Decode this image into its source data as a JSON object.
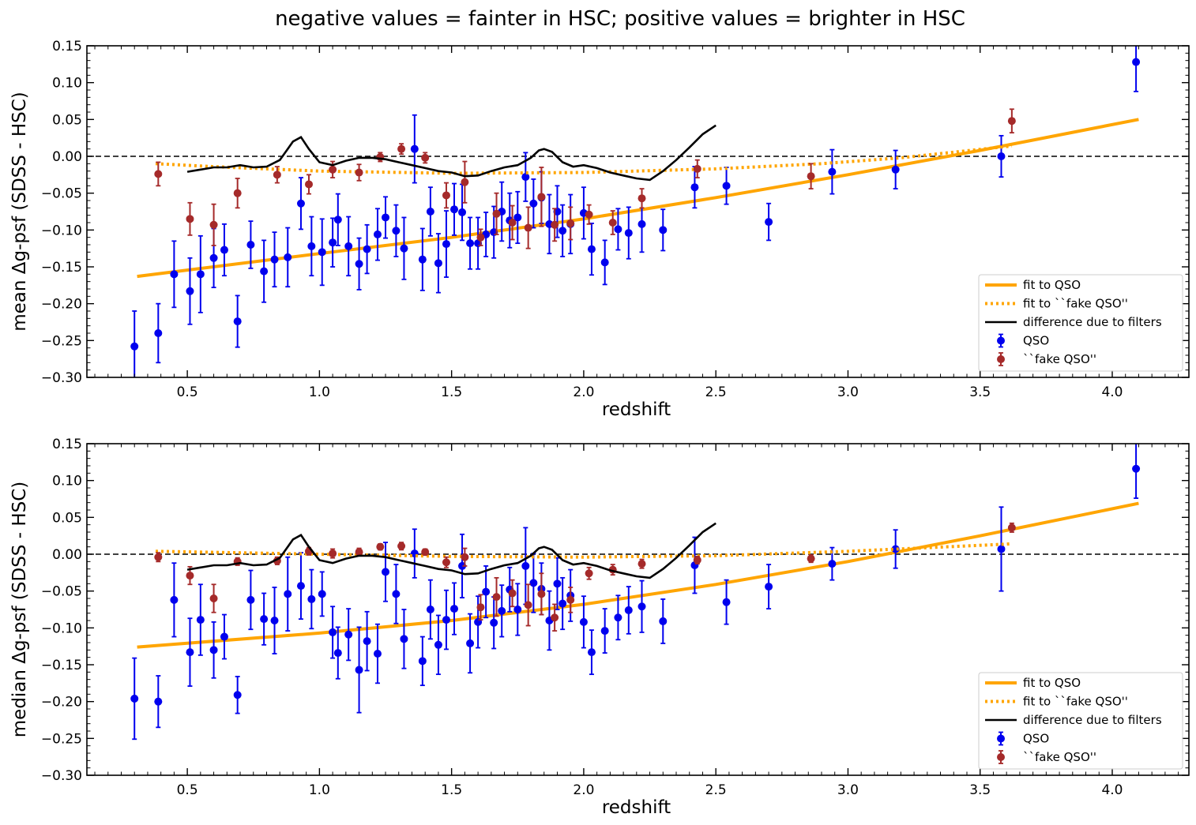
{
  "figure": {
    "suptitle": "negative values = fainter in HSC; positive values = brighter in HSC"
  },
  "colors": {
    "qso": "#0000ee",
    "fake_qso": "#a52a2a",
    "fit": "#ffa500",
    "filters": "#000000",
    "zero_line": "#000000"
  },
  "chart_data": [
    {
      "type": "scatter",
      "xlabel": "redshift",
      "ylabel": "mean Δg-psf (SDSS - HSC)",
      "xlim": [
        0.12,
        4.29
      ],
      "ylim": [
        -0.3,
        0.15
      ],
      "xticks": [
        0.5,
        1.0,
        1.5,
        2.0,
        2.5,
        3.0,
        3.5,
        4.0
      ],
      "xtick_labels": [
        "0.5",
        "1.0",
        "1.5",
        "2.0",
        "2.5",
        "3.0",
        "3.5",
        "4.0"
      ],
      "yticks": [
        -0.3,
        -0.25,
        -0.2,
        -0.15,
        -0.1,
        -0.05,
        0.0,
        0.05,
        0.1,
        0.15
      ],
      "ytick_labels": [
        "−0.30",
        "−0.25",
        "−0.20",
        "−0.15",
        "−0.10",
        "−0.05",
        "0.00",
        "0.05",
        "0.10",
        "0.15"
      ],
      "zero_line": true,
      "legend_position": "lower right",
      "legend": [
        "fit to QSO",
        "fit to ``fake QSO''",
        "difference due to filters",
        "QSO",
        "``fake QSO''"
      ],
      "series": [
        {
          "name": "QSO",
          "kind": "errorbar",
          "x": [
            0.3,
            0.39,
            0.45,
            0.51,
            0.55,
            0.6,
            0.64,
            0.69,
            0.74,
            0.79,
            0.83,
            0.88,
            0.93,
            0.97,
            1.01,
            1.05,
            1.07,
            1.11,
            1.15,
            1.18,
            1.22,
            1.25,
            1.29,
            1.32,
            1.36,
            1.39,
            1.42,
            1.45,
            1.48,
            1.51,
            1.54,
            1.57,
            1.6,
            1.63,
            1.66,
            1.69,
            1.72,
            1.75,
            1.78,
            1.81,
            1.84,
            1.87,
            1.9,
            1.92,
            1.95,
            2.0,
            2.03,
            2.08,
            2.13,
            2.17,
            2.22,
            2.3,
            2.42,
            2.54,
            2.7,
            2.94,
            3.18,
            3.58,
            4.09
          ],
          "y": [
            -0.258,
            -0.24,
            -0.16,
            -0.183,
            -0.16,
            -0.138,
            -0.127,
            -0.224,
            -0.12,
            -0.156,
            -0.14,
            -0.137,
            -0.064,
            -0.122,
            -0.13,
            -0.117,
            -0.086,
            -0.122,
            -0.146,
            -0.126,
            -0.106,
            -0.083,
            -0.101,
            -0.125,
            0.01,
            -0.14,
            -0.075,
            -0.145,
            -0.119,
            -0.072,
            -0.076,
            -0.118,
            -0.118,
            -0.106,
            -0.103,
            -0.075,
            -0.087,
            -0.083,
            -0.028,
            -0.064,
            -0.056,
            -0.092,
            -0.075,
            -0.101,
            -0.092,
            -0.077,
            -0.126,
            -0.144,
            -0.099,
            -0.104,
            -0.092,
            -0.1,
            -0.042,
            -0.04,
            -0.089,
            -0.021,
            -0.018,
            0.0,
            0.128
          ],
          "err": [
            0.048,
            0.04,
            0.045,
            0.045,
            0.052,
            0.04,
            0.035,
            0.035,
            0.032,
            0.042,
            0.037,
            0.04,
            0.035,
            0.04,
            0.045,
            0.033,
            0.035,
            0.04,
            0.035,
            0.033,
            0.035,
            0.028,
            0.035,
            0.042,
            0.046,
            0.042,
            0.033,
            0.04,
            0.045,
            0.035,
            0.038,
            0.035,
            0.035,
            0.03,
            0.035,
            0.04,
            0.037,
            0.035,
            0.033,
            0.033,
            0.035,
            0.04,
            0.035,
            0.035,
            0.04,
            0.035,
            0.035,
            0.03,
            0.028,
            0.035,
            0.038,
            0.028,
            0.028,
            0.025,
            0.025,
            0.03,
            0.026,
            0.028,
            0.04
          ]
        },
        {
          "name": "``fake QSO''",
          "kind": "errorbar",
          "x": [
            0.39,
            0.51,
            0.6,
            0.69,
            0.84,
            0.96,
            1.05,
            1.15,
            1.23,
            1.31,
            1.4,
            1.48,
            1.55,
            1.61,
            1.67,
            1.73,
            1.79,
            1.84,
            1.89,
            1.95,
            2.02,
            2.11,
            2.22,
            2.43,
            2.86,
            3.62
          ],
          "y": [
            -0.024,
            -0.085,
            -0.093,
            -0.05,
            -0.025,
            -0.038,
            -0.018,
            -0.022,
            -0.001,
            0.01,
            -0.002,
            -0.053,
            -0.035,
            -0.11,
            -0.078,
            -0.09,
            -0.097,
            -0.055,
            -0.093,
            -0.091,
            -0.079,
            -0.09,
            -0.057,
            -0.017,
            -0.027,
            0.048
          ],
          "err": [
            0.016,
            0.022,
            0.028,
            0.02,
            0.011,
            0.013,
            0.011,
            0.011,
            0.006,
            0.007,
            0.007,
            0.017,
            0.028,
            0.011,
            0.028,
            0.023,
            0.028,
            0.04,
            0.022,
            0.022,
            0.013,
            0.016,
            0.013,
            0.012,
            0.017,
            0.016
          ]
        },
        {
          "name": "fit to QSO",
          "kind": "line",
          "x": [
            0.31,
            1.0,
            1.5,
            2.0,
            2.5,
            3.0,
            3.5,
            4.1
          ],
          "y": [
            -0.163,
            -0.132,
            -0.11,
            -0.085,
            -0.056,
            -0.025,
            0.008,
            0.05
          ]
        },
        {
          "name": "fit to ``fake QSO''",
          "kind": "dotted-line",
          "x": [
            0.38,
            0.6,
            1.0,
            1.5,
            2.0,
            2.5,
            2.9,
            3.2,
            3.62
          ],
          "y": [
            -0.01,
            -0.014,
            -0.02,
            -0.023,
            -0.022,
            -0.017,
            -0.01,
            -0.002,
            0.014
          ]
        },
        {
          "name": "difference due to filters",
          "kind": "line",
          "x": [
            0.5,
            0.55,
            0.6,
            0.65,
            0.7,
            0.75,
            0.8,
            0.85,
            0.88,
            0.9,
            0.93,
            0.96,
            1.0,
            1.05,
            1.1,
            1.15,
            1.2,
            1.25,
            1.3,
            1.35,
            1.4,
            1.45,
            1.5,
            1.55,
            1.6,
            1.65,
            1.7,
            1.75,
            1.8,
            1.83,
            1.85,
            1.88,
            1.92,
            1.96,
            2.0,
            2.05,
            2.1,
            2.15,
            2.2,
            2.25,
            2.3,
            2.35,
            2.4,
            2.45,
            2.5
          ],
          "y": [
            -0.021,
            -0.018,
            -0.015,
            -0.015,
            -0.012,
            -0.015,
            -0.014,
            -0.005,
            0.01,
            0.02,
            0.026,
            0.01,
            -0.008,
            -0.012,
            -0.006,
            -0.002,
            -0.002,
            -0.004,
            -0.008,
            -0.012,
            -0.016,
            -0.02,
            -0.022,
            -0.027,
            -0.026,
            -0.02,
            -0.015,
            -0.012,
            -0.002,
            0.008,
            0.01,
            0.006,
            -0.008,
            -0.014,
            -0.012,
            -0.016,
            -0.022,
            -0.026,
            -0.03,
            -0.032,
            -0.02,
            -0.005,
            0.012,
            0.03,
            0.042
          ]
        }
      ]
    },
    {
      "type": "scatter",
      "xlabel": "redshift",
      "ylabel": "median Δg-psf (SDSS - HSC)",
      "xlim": [
        0.12,
        4.29
      ],
      "ylim": [
        -0.3,
        0.15
      ],
      "xticks": [
        0.5,
        1.0,
        1.5,
        2.0,
        2.5,
        3.0,
        3.5,
        4.0
      ],
      "xtick_labels": [
        "0.5",
        "1.0",
        "1.5",
        "2.0",
        "2.5",
        "3.0",
        "3.5",
        "4.0"
      ],
      "yticks": [
        -0.3,
        -0.25,
        -0.2,
        -0.15,
        -0.1,
        -0.05,
        0.0,
        0.05,
        0.1,
        0.15
      ],
      "ytick_labels": [
        "−0.30",
        "−0.25",
        "−0.20",
        "−0.15",
        "−0.10",
        "−0.05",
        "0.00",
        "0.05",
        "0.10",
        "0.15"
      ],
      "zero_line": true,
      "legend_position": "lower right",
      "legend": [
        "fit to QSO",
        "fit to ``fake QSO''",
        "difference due to filters",
        "QSO",
        "``fake QSO''"
      ],
      "series": [
        {
          "name": "QSO",
          "kind": "errorbar",
          "x": [
            0.3,
            0.39,
            0.45,
            0.51,
            0.55,
            0.6,
            0.64,
            0.69,
            0.74,
            0.79,
            0.83,
            0.88,
            0.93,
            0.97,
            1.01,
            1.05,
            1.07,
            1.11,
            1.15,
            1.18,
            1.22,
            1.25,
            1.29,
            1.32,
            1.36,
            1.39,
            1.42,
            1.45,
            1.48,
            1.51,
            1.54,
            1.57,
            1.6,
            1.63,
            1.66,
            1.69,
            1.72,
            1.75,
            1.78,
            1.81,
            1.84,
            1.87,
            1.9,
            1.92,
            1.95,
            2.0,
            2.03,
            2.08,
            2.13,
            2.17,
            2.22,
            2.3,
            2.42,
            2.54,
            2.7,
            2.94,
            3.18,
            3.58,
            4.09
          ],
          "y": [
            -0.196,
            -0.2,
            -0.062,
            -0.133,
            -0.089,
            -0.13,
            -0.112,
            -0.191,
            -0.062,
            -0.088,
            -0.09,
            -0.054,
            -0.043,
            -0.061,
            -0.054,
            -0.106,
            -0.134,
            -0.109,
            -0.157,
            -0.118,
            -0.135,
            -0.024,
            -0.054,
            -0.115,
            0.001,
            -0.145,
            -0.075,
            -0.123,
            -0.089,
            -0.074,
            -0.016,
            -0.121,
            -0.092,
            -0.051,
            -0.093,
            -0.077,
            -0.048,
            -0.075,
            -0.016,
            -0.039,
            -0.047,
            -0.09,
            -0.04,
            -0.067,
            -0.056,
            -0.092,
            -0.133,
            -0.104,
            -0.086,
            -0.076,
            -0.071,
            -0.091,
            -0.015,
            -0.065,
            -0.044,
            -0.013,
            0.007,
            0.007,
            0.116
          ],
          "err": [
            0.055,
            0.035,
            0.05,
            0.046,
            0.048,
            0.038,
            0.03,
            0.025,
            0.04,
            0.035,
            0.045,
            0.05,
            0.045,
            0.04,
            0.03,
            0.035,
            0.035,
            0.035,
            0.058,
            0.04,
            0.04,
            0.04,
            0.04,
            0.04,
            0.033,
            0.033,
            0.04,
            0.04,
            0.04,
            0.035,
            0.043,
            0.04,
            0.035,
            0.035,
            0.035,
            0.035,
            0.03,
            0.035,
            0.052,
            0.04,
            0.035,
            0.04,
            0.035,
            0.035,
            0.035,
            0.035,
            0.03,
            0.03,
            0.03,
            0.032,
            0.035,
            0.03,
            0.038,
            0.03,
            0.03,
            0.022,
            0.026,
            0.057,
            0.04
          ]
        },
        {
          "name": "``fake QSO''",
          "kind": "errorbar",
          "x": [
            0.39,
            0.51,
            0.6,
            0.69,
            0.84,
            0.96,
            1.05,
            1.15,
            1.23,
            1.31,
            1.4,
            1.48,
            1.55,
            1.61,
            1.67,
            1.73,
            1.79,
            1.84,
            1.89,
            1.95,
            2.02,
            2.11,
            2.22,
            2.43,
            2.86,
            3.62
          ],
          "y": [
            -0.004,
            -0.029,
            -0.06,
            -0.01,
            -0.009,
            0.004,
            0.001,
            0.003,
            0.01,
            0.011,
            0.003,
            -0.011,
            -0.004,
            -0.072,
            -0.058,
            -0.053,
            -0.069,
            -0.054,
            -0.086,
            -0.062,
            -0.026,
            -0.021,
            -0.013,
            -0.008,
            -0.006,
            0.036
          ],
          "err": [
            0.006,
            0.012,
            0.019,
            0.005,
            0.005,
            0.005,
            0.006,
            0.005,
            0.004,
            0.005,
            0.004,
            0.007,
            0.012,
            0.017,
            0.026,
            0.018,
            0.028,
            0.028,
            0.018,
            0.017,
            0.008,
            0.007,
            0.006,
            0.005,
            0.005,
            0.006
          ]
        },
        {
          "name": "fit to QSO",
          "kind": "line",
          "x": [
            0.31,
            1.0,
            1.5,
            2.0,
            2.5,
            3.0,
            3.5,
            4.1
          ],
          "y": [
            -0.126,
            -0.107,
            -0.09,
            -0.068,
            -0.041,
            -0.01,
            0.025,
            0.069
          ]
        },
        {
          "name": "fit to ``fake QSO''",
          "kind": "dotted-line",
          "x": [
            0.38,
            1.0,
            1.5,
            2.0,
            2.5,
            3.0,
            3.62
          ],
          "y": [
            0.004,
            0.0,
            -0.003,
            -0.004,
            -0.002,
            0.004,
            0.014
          ]
        },
        {
          "name": "difference due to filters",
          "kind": "line",
          "x": [
            0.5,
            0.55,
            0.6,
            0.65,
            0.7,
            0.75,
            0.8,
            0.85,
            0.88,
            0.9,
            0.93,
            0.96,
            1.0,
            1.05,
            1.1,
            1.15,
            1.2,
            1.25,
            1.3,
            1.35,
            1.4,
            1.45,
            1.5,
            1.55,
            1.6,
            1.65,
            1.7,
            1.75,
            1.8,
            1.83,
            1.85,
            1.88,
            1.92,
            1.96,
            2.0,
            2.05,
            2.1,
            2.15,
            2.2,
            2.25,
            2.3,
            2.35,
            2.4,
            2.45,
            2.5
          ],
          "y": [
            -0.021,
            -0.018,
            -0.015,
            -0.015,
            -0.012,
            -0.015,
            -0.014,
            -0.005,
            0.01,
            0.02,
            0.026,
            0.01,
            -0.008,
            -0.012,
            -0.006,
            -0.002,
            -0.002,
            -0.004,
            -0.008,
            -0.012,
            -0.016,
            -0.02,
            -0.022,
            -0.027,
            -0.026,
            -0.02,
            -0.015,
            -0.012,
            -0.002,
            0.008,
            0.01,
            0.006,
            -0.008,
            -0.014,
            -0.012,
            -0.016,
            -0.022,
            -0.026,
            -0.03,
            -0.032,
            -0.02,
            -0.005,
            0.012,
            0.03,
            0.042
          ]
        }
      ]
    }
  ]
}
